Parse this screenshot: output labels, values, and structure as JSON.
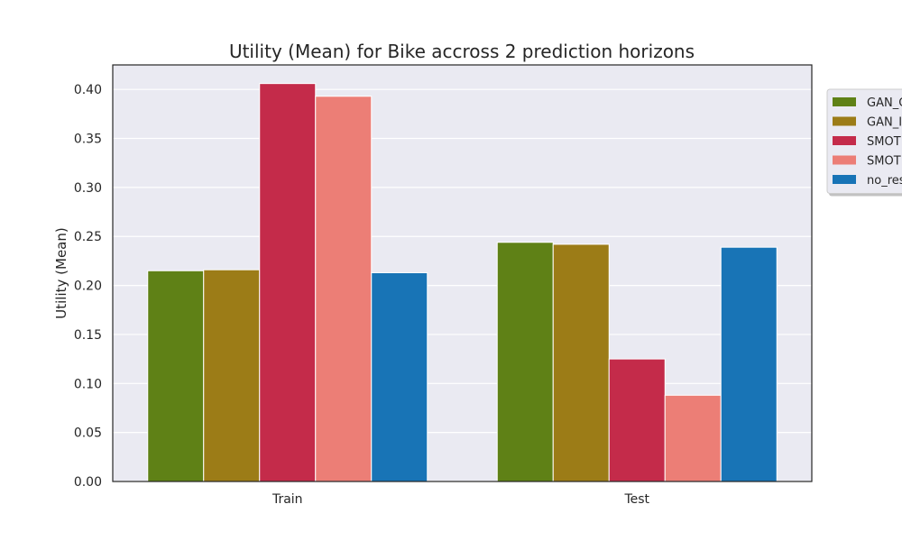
{
  "chart_data": {
    "type": "bar",
    "title": "Utility (Mean) for Bike accross 2 prediction horizons",
    "xlabel": "",
    "ylabel": "Utility (Mean)",
    "categories": [
      "Train",
      "Test"
    ],
    "ylim": [
      0,
      0.425
    ],
    "yticks": [
      "0.00",
      "0.05",
      "0.10",
      "0.15",
      "0.20",
      "0.25",
      "0.30",
      "0.35",
      "0.40"
    ],
    "grid": true,
    "legend_position": "right, outside plot (clipped)",
    "series": [
      {
        "name": "GAN_C",
        "color": "#5f8116",
        "values": [
          0.215,
          0.244
        ]
      },
      {
        "name": "GAN_I",
        "color": "#9c7c17",
        "values": [
          0.216,
          0.242
        ]
      },
      {
        "name": "SMOT",
        "color": "#c42b4a",
        "values": [
          0.406,
          0.125
        ]
      },
      {
        "name": "SMOT",
        "color": "#ec7e76",
        "values": [
          0.393,
          0.088
        ]
      },
      {
        "name": "no_res",
        "color": "#1874b6",
        "values": [
          0.213,
          0.239
        ]
      }
    ]
  }
}
